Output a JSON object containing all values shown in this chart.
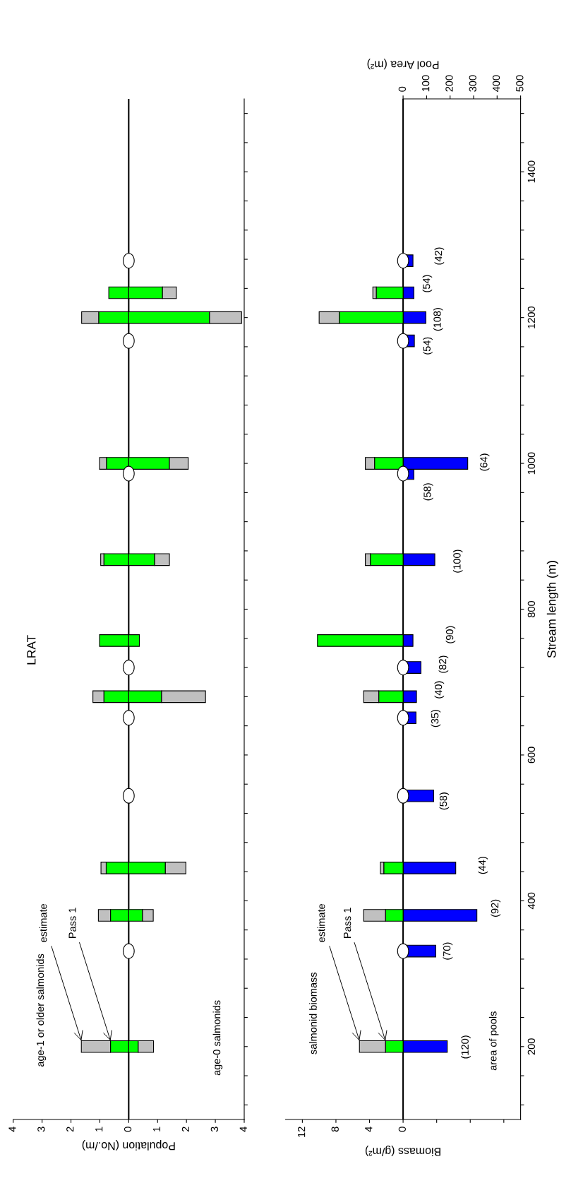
{
  "chart_data": [
    {
      "type": "bar",
      "orientation": "horizontal",
      "stacked": true,
      "title": "LRAT",
      "xlabel": "Population (No./m)",
      "tick_labels": "x",
      "xlim": [
        4,
        -4
      ],
      "xticks": [
        4,
        3,
        2,
        1,
        0,
        {
          "value": -1,
          "label": "1"
        },
        {
          "value": -2,
          "label": "2"
        },
        {
          "value": -3,
          "label": "3"
        },
        {
          "value": -4,
          "label": "4"
        }
      ],
      "ylim": [
        100,
        1500
      ],
      "yticks": [
        {
          "value": 120,
          "label": null
        },
        {
          "value": 160,
          "label": null
        },
        200,
        {
          "value": 240,
          "label": null
        },
        {
          "value": 280,
          "label": null
        },
        {
          "value": 320,
          "label": null
        },
        {
          "value": 360,
          "label": null
        },
        400,
        {
          "value": 440,
          "label": null
        },
        {
          "value": 480,
          "label": null
        },
        {
          "value": 520,
          "label": null
        },
        {
          "value": 560,
          "label": null
        },
        600,
        {
          "value": 640,
          "label": null
        },
        {
          "value": 680,
          "label": null
        },
        {
          "value": 720,
          "label": null
        },
        {
          "value": 760,
          "label": null
        },
        800,
        {
          "value": 840,
          "label": null
        },
        {
          "value": 880,
          "label": null
        },
        {
          "value": 920,
          "label": null
        },
        {
          "value": 960,
          "label": null
        },
        1000,
        {
          "value": 1040,
          "label": null
        },
        {
          "value": 1080,
          "label": null
        },
        {
          "value": 1120,
          "label": null
        },
        {
          "value": 1160,
          "label": null
        },
        1200,
        {
          "value": 1240,
          "label": null
        },
        {
          "value": 1280,
          "label": null
        },
        {
          "value": 1320,
          "label": null
        },
        {
          "value": 1360,
          "label": null
        },
        1400,
        {
          "value": 1440,
          "label": null
        },
        {
          "value": 1480,
          "label": null
        }
      ],
      "ref_lines": [
        {
          "axis": "x",
          "value": 0,
          "color": "#000000"
        }
      ],
      "annotations": [
        "age-1 or older salmonids",
        "age-0 salmonids"
      ],
      "x": [
        200,
        380,
        445,
        680,
        757,
        868,
        1000,
        1200,
        1234
      ],
      "series": [
        {
          "name": "Pass 1",
          "color": "#00ff00",
          "values": [
            0.63,
            0.63,
            0.78,
            0.86,
            1.01,
            0.86,
            0.77,
            1.04,
            0.69
          ]
        },
        {
          "name": "estimate",
          "color": "#c0c0c0",
          "values": [
            1.01,
            0.42,
            0.18,
            0.38,
            null,
            0.11,
            0.24,
            0.59,
            null
          ]
        },
        {
          "color": "#00ff00",
          "values": [
            -0.33,
            -0.48,
            -1.27,
            -1.14,
            -0.37,
            -0.9,
            -1.41,
            -2.8,
            -1.17
          ]
        },
        {
          "color": "#c0c0c0",
          "values": [
            -0.53,
            -0.37,
            -0.71,
            -1.52,
            null,
            -0.51,
            -0.65,
            -1.11,
            -0.48
          ]
        },
        {
          "type": "scatter",
          "marker": "circle",
          "color": "#ffffff",
          "x": [
            331,
            544,
            651,
            720,
            986,
            1168,
            1278
          ],
          "values": [
            0,
            0,
            0,
            0,
            0,
            0,
            0
          ]
        }
      ]
    },
    {
      "type": "bar",
      "orientation": "horizontal",
      "stacked": true,
      "xlabel": "Biomass (g/m²)",
      "ylabel": "Stream length (m)",
      "xlim": [
        14,
        -14
      ],
      "xticks": [
        12,
        8,
        4,
        0,
        {
          "value": -4,
          "label": null
        },
        {
          "value": -8,
          "label": null
        },
        {
          "value": -12,
          "label": null
        }
      ],
      "ylim": [
        100,
        1500
      ],
      "yticks": [
        {
          "value": 120,
          "label": null
        },
        {
          "value": 160,
          "label": null
        },
        200,
        {
          "value": 240,
          "label": null
        },
        {
          "value": 280,
          "label": null
        },
        {
          "value": 320,
          "label": null
        },
        {
          "value": 360,
          "label": null
        },
        400,
        {
          "value": 440,
          "label": null
        },
        {
          "value": 480,
          "label": null
        },
        {
          "value": 520,
          "label": null
        },
        {
          "value": 560,
          "label": null
        },
        600,
        {
          "value": 640,
          "label": null
        },
        {
          "value": 680,
          "label": null
        },
        {
          "value": 720,
          "label": null
        },
        {
          "value": 760,
          "label": null
        },
        800,
        {
          "value": 840,
          "label": null
        },
        {
          "value": 880,
          "label": null
        },
        {
          "value": 920,
          "label": null
        },
        {
          "value": 960,
          "label": null
        },
        1000,
        {
          "value": 1040,
          "label": null
        },
        {
          "value": 1080,
          "label": null
        },
        {
          "value": 1120,
          "label": null
        },
        {
          "value": 1160,
          "label": null
        },
        1200,
        {
          "value": 1240,
          "label": null
        },
        {
          "value": 1280,
          "label": null
        },
        {
          "value": 1320,
          "label": null
        },
        {
          "value": 1360,
          "label": null
        },
        1400,
        {
          "value": 1440,
          "label": null
        },
        {
          "value": 1480,
          "label": null
        }
      ],
      "ref_lines": [
        {
          "axis": "x",
          "value": 0,
          "color": "#000000"
        }
      ],
      "annotations": [
        "salmonid biomass"
      ],
      "x": [
        200,
        380,
        445,
        680,
        757,
        868,
        1000,
        1200,
        1234
      ],
      "series": [
        {
          "name": "Pass 1",
          "color": "#00ff00",
          "values": [
            2.1,
            2.1,
            2.3,
            2.9,
            10.2,
            3.9,
            3.4,
            7.6,
            3.2
          ]
        },
        {
          "name": "estimate",
          "color": "#c0c0c0",
          "values": [
            3.1,
            2.6,
            0.4,
            1.8,
            null,
            0.6,
            1.1,
            2.4,
            0.4
          ]
        },
        {
          "type": "scatter",
          "marker": "circle",
          "color": "#ffffff",
          "x": [
            331,
            544,
            651,
            720,
            986,
            1168,
            1278
          ],
          "values": [
            0,
            0,
            0,
            0,
            0,
            0,
            0
          ]
        }
      ]
    },
    {
      "type": "bar",
      "orientation": "horizontal",
      "xlabel": "Pool Area (m²)",
      "tick_labels": "x",
      "xlim": [
        -500,
        500
      ],
      "xticks": [
        0,
        100,
        200,
        300,
        400,
        500
      ],
      "ylim": [
        100,
        1500
      ],
      "annotations": [
        "area of pools",
        "(120)",
        "(70)",
        "(92)",
        "(44)",
        "(58)",
        "(35)",
        "(40)",
        "(82)",
        "(90)",
        "(100)",
        "(58)",
        "(64)",
        "(54)",
        "(108)",
        "(54)",
        "(42)"
      ],
      "x": [
        200,
        331,
        380,
        445,
        544,
        651,
        680,
        720,
        757,
        868,
        986,
        1000,
        1168,
        1200,
        1234,
        1278
      ],
      "series": [
        {
          "color": "#0000ff",
          "values": [
            188,
            139,
            314,
            224,
            130,
            55,
            57,
            76,
            42,
            135,
            46,
            275,
            48,
            97,
            46,
            42
          ]
        }
      ]
    }
  ]
}
